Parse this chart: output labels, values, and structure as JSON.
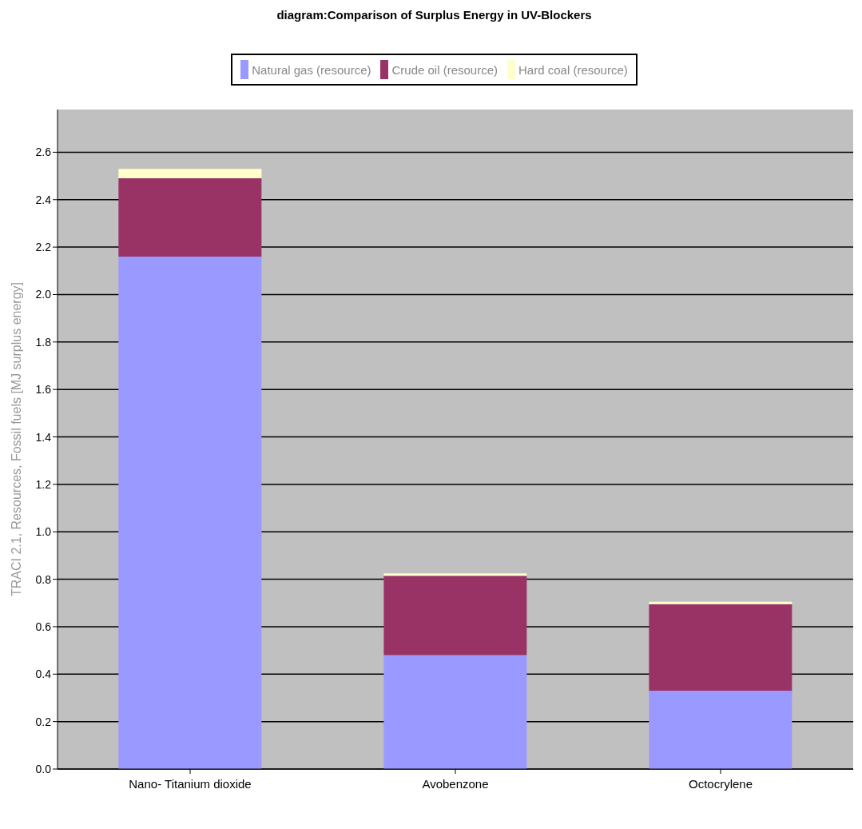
{
  "chart_data": {
    "type": "bar",
    "title": "diagram:Comparison of Surplus Energy in UV-Blockers",
    "ylabel": "TRACI 2.1, Resources, Fossil fuels [MJ surplus energy]",
    "categories": [
      "Nano- Titanium dioxide",
      "Avobenzone",
      "Octocrylene"
    ],
    "stacked": true,
    "series": [
      {
        "name": "Natural gas (resource)",
        "color": "#9999ff",
        "values": [
          2.16,
          0.48,
          0.33
        ]
      },
      {
        "name": "Crude oil (resource)",
        "color": "#993366",
        "values": [
          0.33,
          0.335,
          0.365
        ]
      },
      {
        "name": "Hard coal (resource)",
        "color": "#ffffcc",
        "values": [
          0.04,
          0.01,
          0.01
        ]
      }
    ],
    "ylim": [
      0,
      2.78
    ],
    "yticks": [
      {
        "value": 0,
        "label": "0.0"
      },
      0.2,
      0.4,
      0.6,
      0.8,
      {
        "value": 1,
        "label": "1.0"
      },
      1.2,
      1.4,
      1.6,
      1.8,
      {
        "value": 2,
        "label": "2.0"
      },
      2.2,
      2.4,
      2.6
    ],
    "grid": "y",
    "legend": "top"
  }
}
